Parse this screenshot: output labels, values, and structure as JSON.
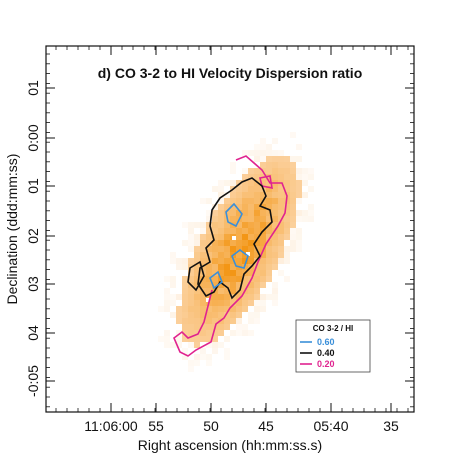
{
  "chart_data": {
    "type": "heatmap",
    "title": "d) CO 3-2 to HI Velocity Dispersion ratio",
    "xlabel": "Right ascension (hh:mm:ss.s)",
    "ylabel": "Declination (ddd:mm:ss)",
    "x_ticks": [
      "11:06:00",
      "55",
      "50",
      "45",
      "05:40",
      "35"
    ],
    "y_ticks": [
      "01",
      "0:00",
      "01",
      "02",
      "03",
      "04",
      "-0:05"
    ],
    "colormap": "white-to-orange",
    "contours": {
      "legend_title": "CO 3-2 / HI",
      "levels": [
        {
          "value": "0.60",
          "color": "#3a8fd9"
        },
        {
          "value": "0.40",
          "color": "#111111"
        },
        {
          "value": "0.20",
          "color": "#e0238f"
        }
      ]
    },
    "grid": false,
    "legend_position": "bottom-right"
  }
}
